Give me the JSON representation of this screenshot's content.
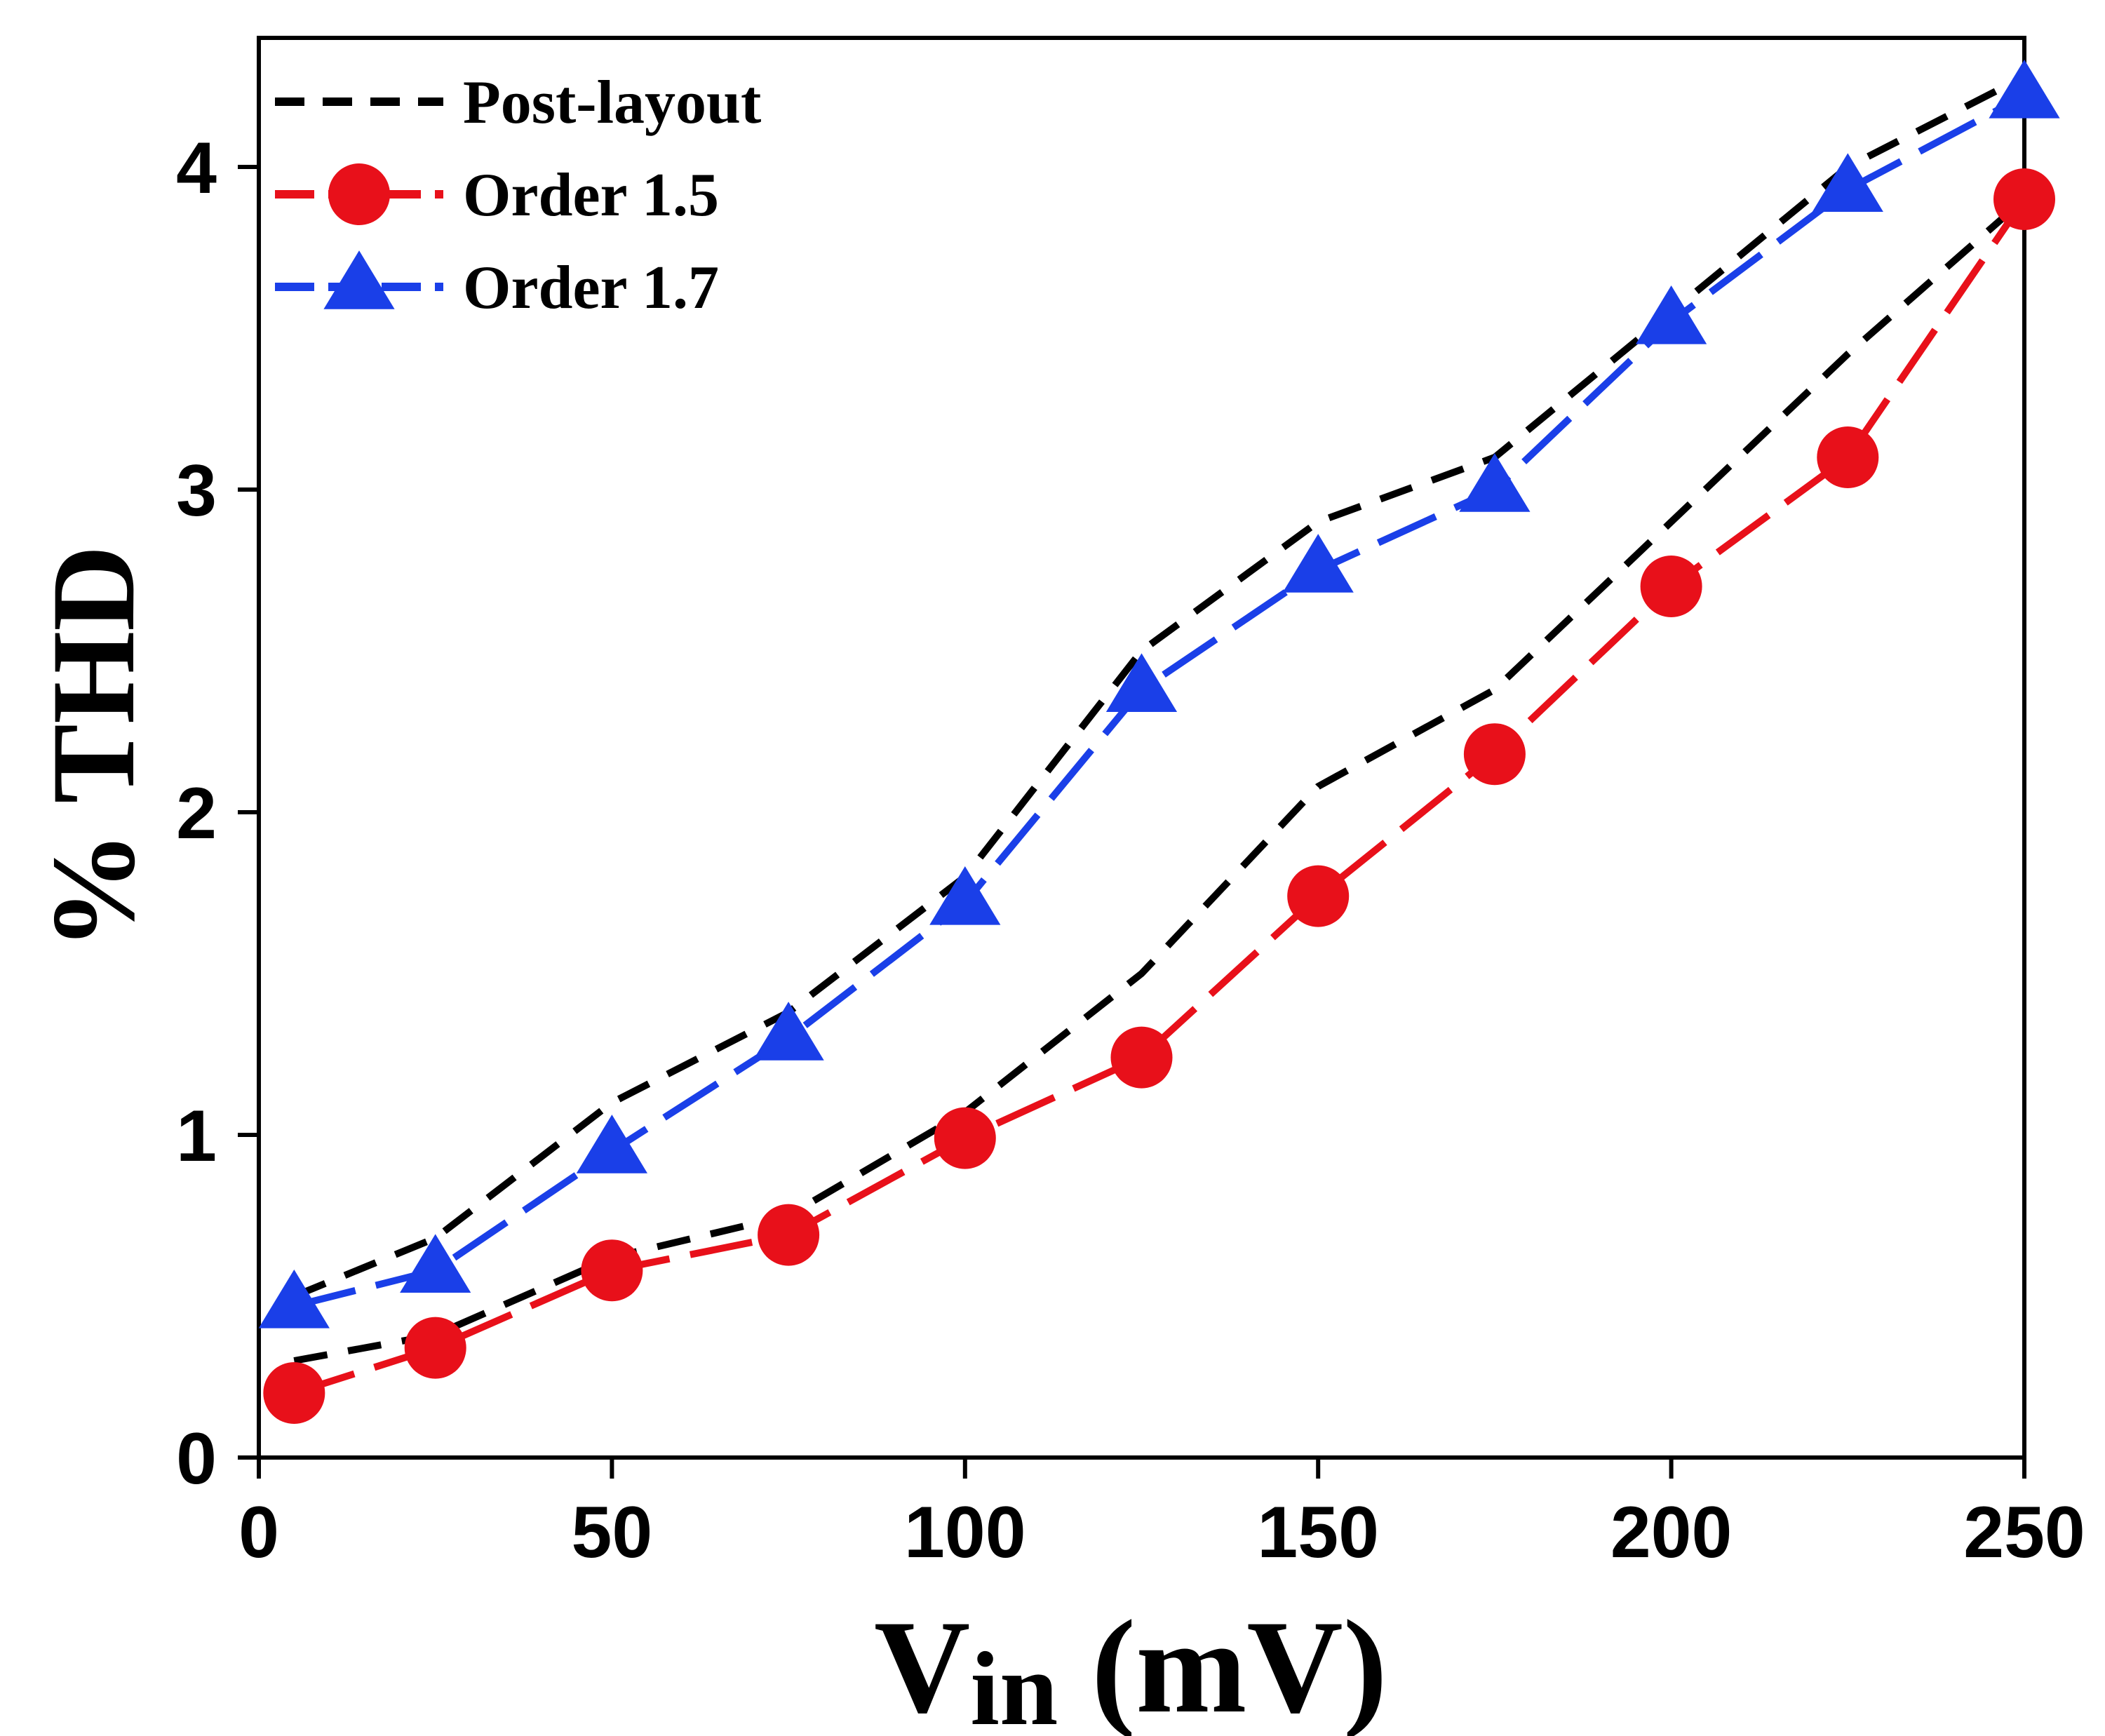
{
  "chart_data": {
    "type": "line",
    "title": "",
    "xlabel": "Vin (mV)",
    "xlabel_main": "V",
    "xlabel_sub": "in",
    "xlabel_unit": " (mV)",
    "ylabel": "% THD",
    "xlim": [
      0,
      250
    ],
    "ylim": [
      0,
      4.4
    ],
    "xticks": [
      0,
      50,
      100,
      150,
      200,
      250
    ],
    "yticks": [
      0,
      1,
      2,
      3,
      4
    ],
    "legend_position": "top-left",
    "series": [
      {
        "name": "Post-layout",
        "color": "#000000",
        "style": "dashed",
        "marker": "none",
        "curves": [
          {
            "x": [
              5,
              25,
              50,
              75,
              100,
              125,
              150,
              175,
              200,
              225,
              250
            ],
            "y": [
              0.5,
              0.68,
              1.1,
              1.38,
              1.8,
              2.5,
              2.9,
              3.1,
              3.55,
              4.0,
              4.28
            ]
          },
          {
            "x": [
              5,
              25,
              50,
              75,
              100,
              125,
              150,
              175,
              200,
              225,
              250
            ],
            "y": [
              0.3,
              0.38,
              0.62,
              0.75,
              1.07,
              1.5,
              2.08,
              2.38,
              2.9,
              3.42,
              3.9
            ]
          }
        ]
      },
      {
        "name": "Order 1.5",
        "color": "#e8101a",
        "style": "dashed",
        "marker": "circle",
        "curves": [
          {
            "x": [
              5,
              25,
              50,
              75,
              100,
              125,
              150,
              175,
              200,
              225,
              250
            ],
            "y": [
              0.2,
              0.34,
              0.58,
              0.69,
              0.99,
              1.24,
              1.74,
              2.18,
              2.7,
              3.1,
              3.9
            ]
          }
        ]
      },
      {
        "name": "Order 1.7",
        "color": "#1a3fe8",
        "style": "dashed",
        "marker": "triangle",
        "curves": [
          {
            "x": [
              5,
              25,
              50,
              75,
              100,
              125,
              150,
              175,
              200,
              225,
              250
            ],
            "y": [
              0.47,
              0.58,
              0.95,
              1.3,
              1.72,
              2.38,
              2.75,
              3.0,
              3.52,
              3.93,
              4.22
            ]
          }
        ]
      }
    ]
  }
}
